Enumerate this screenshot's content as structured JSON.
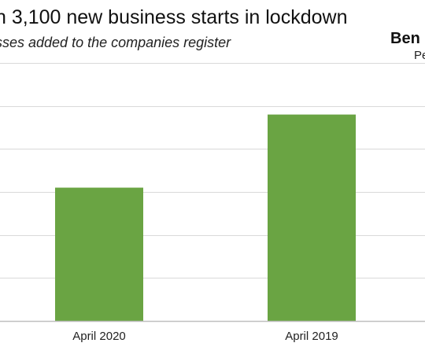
{
  "title": "n 3,100 new business starts in lockdown",
  "subtitle": "sses added to the companies register",
  "logo": {
    "line1": "Ben",
    "line2": "Pe"
  },
  "colors": {
    "bar": "#6aa443",
    "grid": "#d9d9d9",
    "axis": "#bfbfbf"
  },
  "chart_data": {
    "type": "bar",
    "categories": [
      "April 2020",
      "April 2019"
    ],
    "values": [
      31,
      48
    ],
    "ylim": [
      0,
      60
    ],
    "ytick_step": 10,
    "grid": true,
    "title": "n 3,100 new business starts in lockdown",
    "subtitle": "sses added to the companies register"
  }
}
